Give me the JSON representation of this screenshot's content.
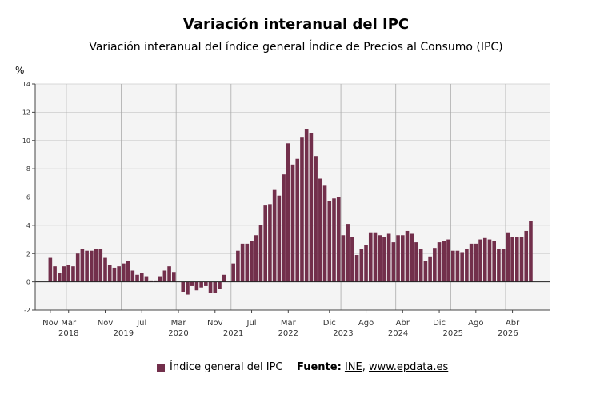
{
  "title": "Variación interanual del IPC",
  "subtitle": "Variación interanual del índice general Índice de Precios al Consumo (IPC)",
  "unit_label": "%",
  "legend": {
    "series_label": "Índice general del IPC"
  },
  "source": {
    "label": "Fuente:",
    "link1": "INE",
    "separator": ",",
    "link2": "www.epdata.es"
  },
  "colors": {
    "bar": "#722f4b",
    "grid": "#cccccc",
    "plot_bg": "#f4f4f4"
  },
  "chart_data": {
    "type": "bar",
    "ylim": [
      -2,
      14
    ],
    "yticks": [
      -2,
      0,
      2,
      4,
      6,
      8,
      10,
      12,
      14
    ],
    "grid": true,
    "legend_position": "bottom",
    "month_labels": [
      {
        "label": "Nov",
        "index": 0
      },
      {
        "label": "Mar",
        "index": 4
      },
      {
        "label": "Nov",
        "index": 12
      },
      {
        "label": "Jul",
        "index": 20
      },
      {
        "label": "Mar",
        "index": 28
      },
      {
        "label": "Nov",
        "index": 36
      },
      {
        "label": "Jul",
        "index": 44
      },
      {
        "label": "Mar",
        "index": 52
      },
      {
        "label": "Dic",
        "index": 61
      },
      {
        "label": "Ago",
        "index": 69
      },
      {
        "label": "Abr",
        "index": 77
      },
      {
        "label": "Dic",
        "index": 85
      },
      {
        "label": "Ago",
        "index": 93
      },
      {
        "label": "Abr",
        "index": 101
      }
    ],
    "year_labels": [
      {
        "label": "2018",
        "index": 4
      },
      {
        "label": "2019",
        "index": 16
      },
      {
        "label": "2020",
        "index": 28
      },
      {
        "label": "2021",
        "index": 40
      },
      {
        "label": "2022",
        "index": 52
      },
      {
        "label": "2023",
        "index": 64
      },
      {
        "label": "2024",
        "index": 76
      },
      {
        "label": "2025",
        "index": 88
      },
      {
        "label": "2026",
        "index": 100
      }
    ],
    "year_dividers": [
      3.5,
      15.5,
      27.5,
      39.5,
      51.5,
      63.5,
      75.5,
      87.5,
      99.5
    ],
    "first_month": "2017-11",
    "values": [
      1.7,
      1.1,
      0.6,
      1.1,
      1.2,
      1.1,
      2.0,
      2.3,
      2.2,
      2.2,
      2.3,
      2.3,
      1.7,
      1.2,
      1.0,
      1.1,
      1.3,
      1.5,
      0.8,
      0.5,
      0.6,
      0.4,
      0.1,
      0.1,
      0.4,
      0.8,
      1.1,
      0.7,
      0.0,
      -0.7,
      -0.9,
      -0.3,
      -0.6,
      -0.4,
      -0.3,
      -0.8,
      -0.8,
      -0.5,
      0.5,
      0.0,
      1.3,
      2.2,
      2.7,
      2.7,
      2.9,
      3.3,
      4.0,
      5.4,
      5.5,
      6.5,
      6.1,
      7.6,
      9.8,
      8.3,
      8.7,
      10.2,
      10.8,
      10.5,
      8.9,
      7.3,
      6.8,
      5.7,
      5.9,
      6.0,
      3.3,
      4.1,
      3.2,
      1.9,
      2.3,
      2.6,
      3.5,
      3.5,
      3.3,
      3.2,
      3.4,
      2.8,
      3.3,
      3.3,
      3.6,
      3.4,
      2.8,
      2.3,
      1.5,
      1.8,
      2.4,
      2.8,
      2.9,
      3.0,
      2.2,
      2.2,
      2.1,
      2.3,
      2.7,
      2.7,
      3.0,
      3.1,
      3.0,
      2.9,
      2.3,
      2.3,
      3.5,
      3.2,
      3.2,
      3.2,
      3.6,
      4.3
    ]
  }
}
